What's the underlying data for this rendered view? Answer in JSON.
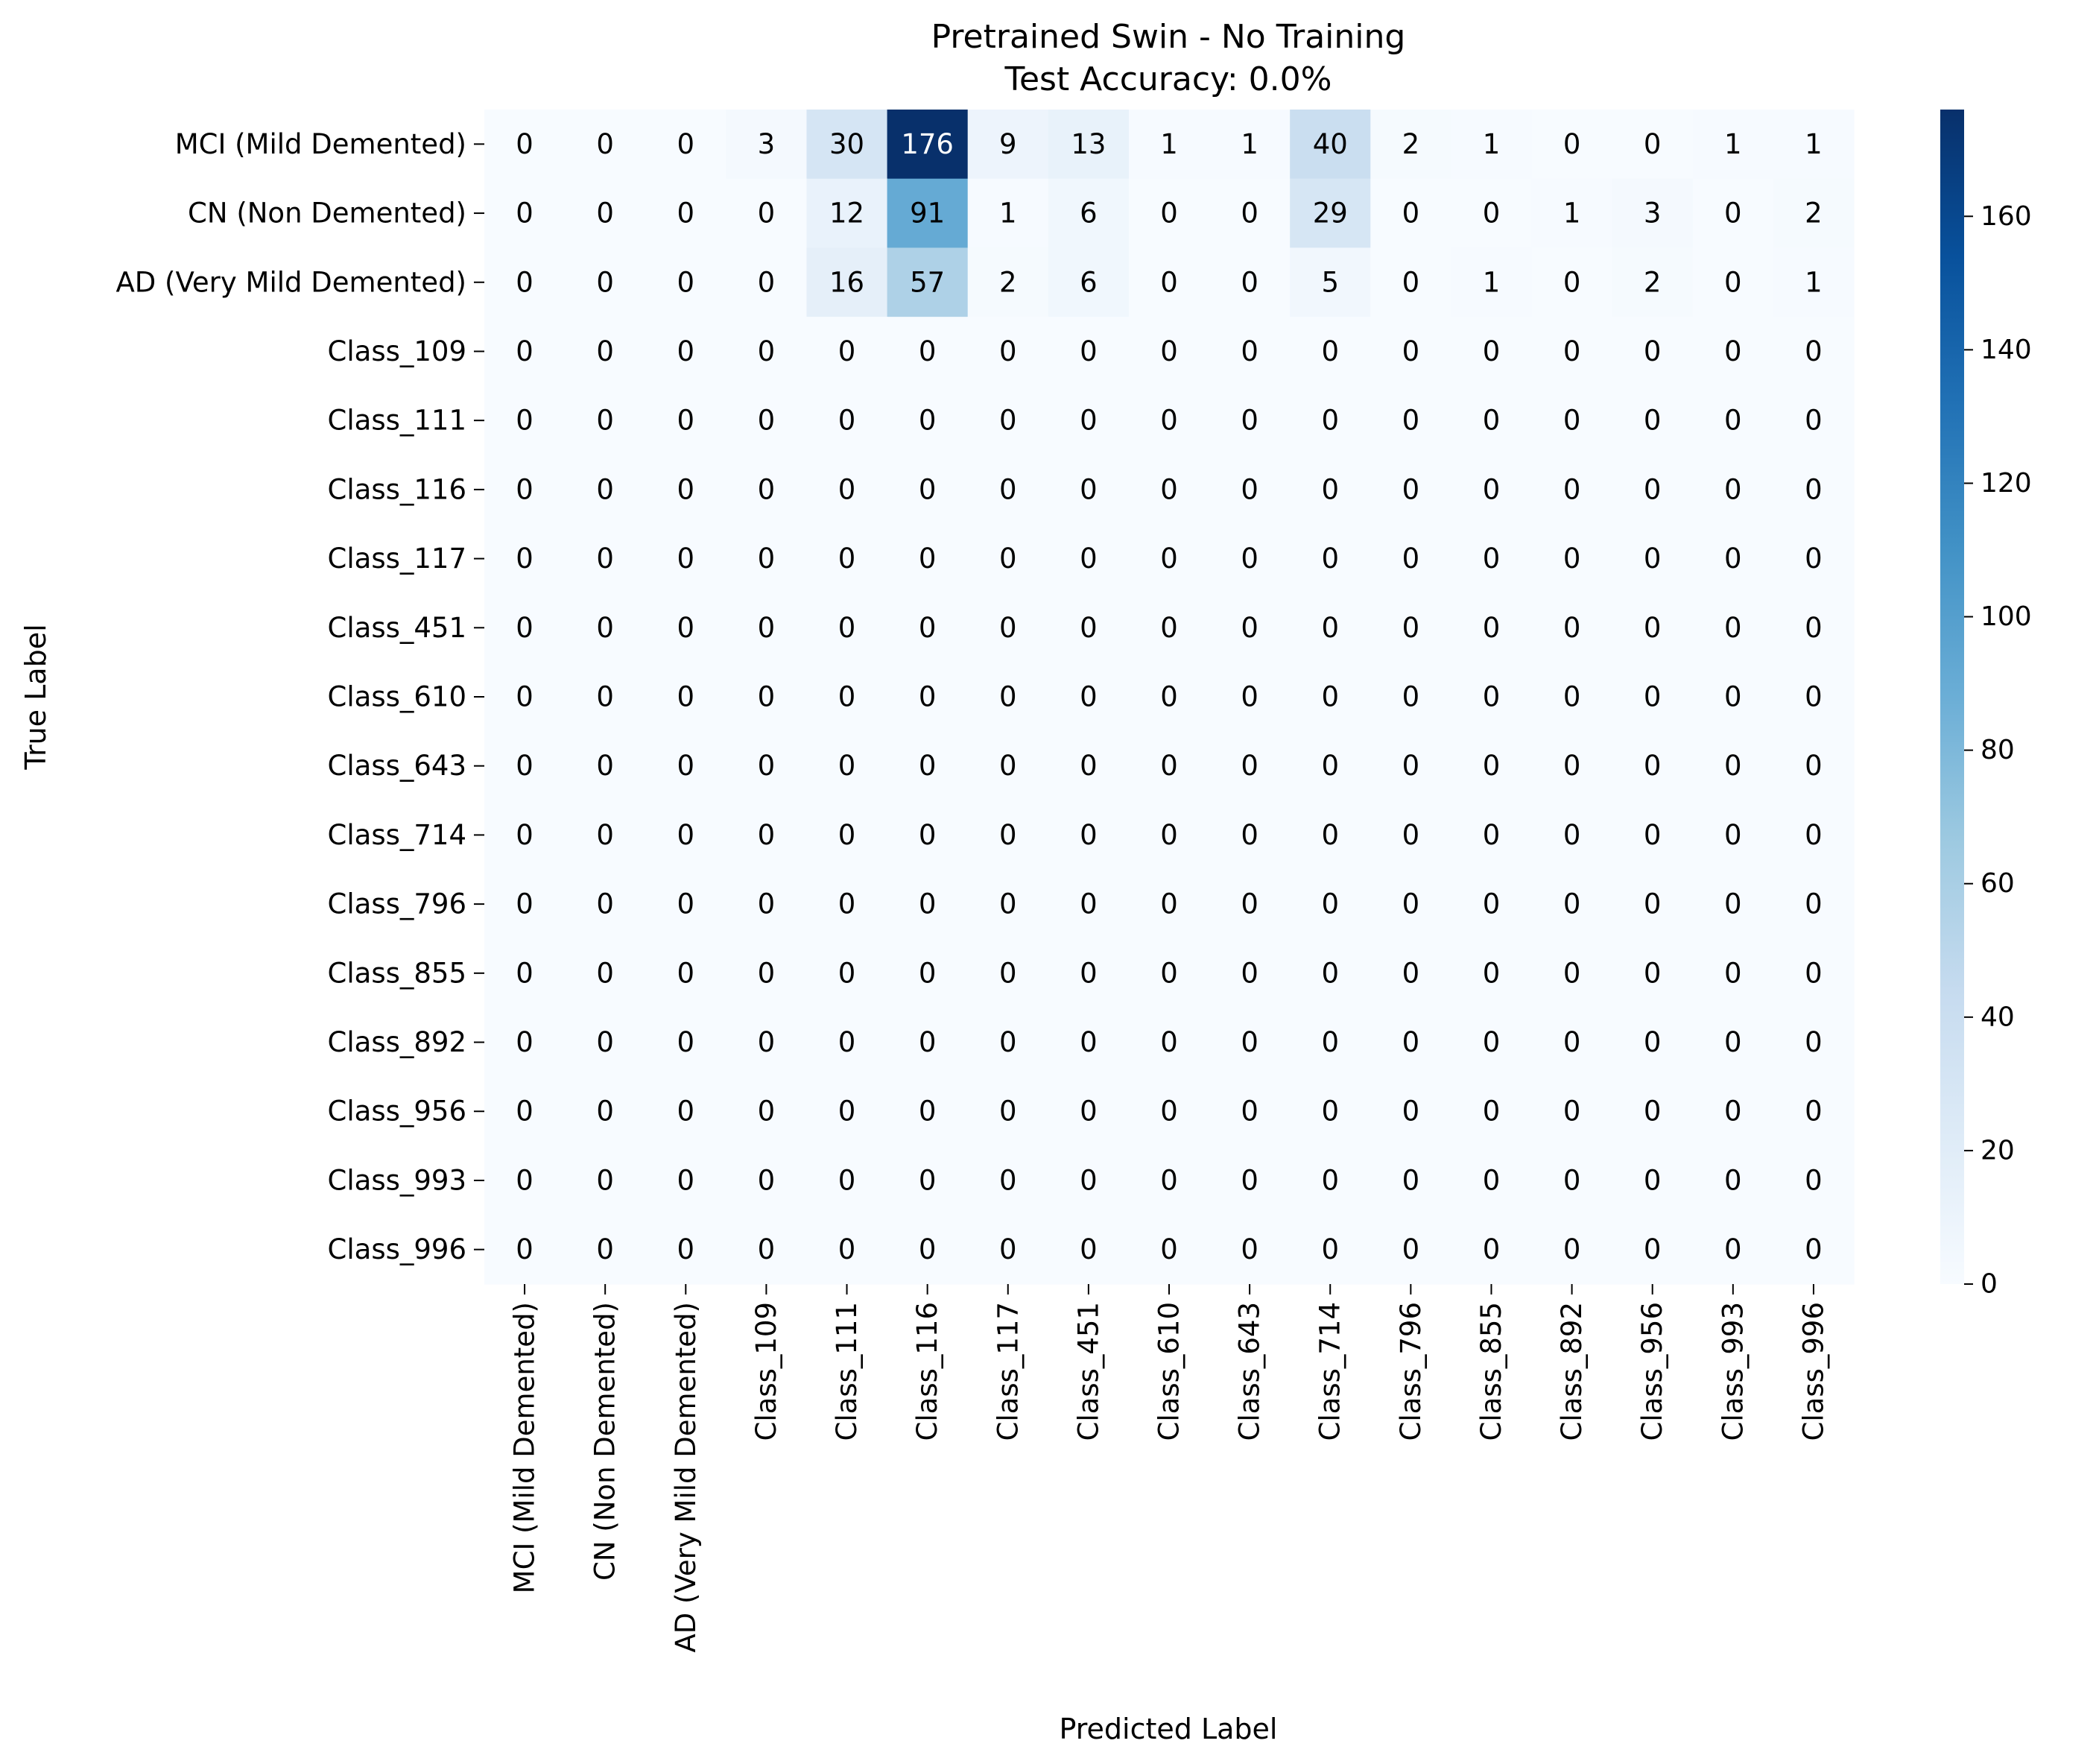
{
  "chart_data": {
    "type": "heatmap",
    "title": "Pretrained Swin - No Training",
    "subtitle": "Test Accuracy: 0.0%",
    "xlabel": "Predicted Label",
    "ylabel": "True Label",
    "row_labels": [
      "MCI (Mild Demented)",
      "CN (Non Demented)",
      "AD (Very Mild Demented)",
      "Class_109",
      "Class_111",
      "Class_116",
      "Class_117",
      "Class_451",
      "Class_610",
      "Class_643",
      "Class_714",
      "Class_796",
      "Class_855",
      "Class_892",
      "Class_956",
      "Class_993",
      "Class_996"
    ],
    "col_labels": [
      "MCI (Mild Demented)",
      "CN (Non Demented)",
      "AD (Very Mild Demented)",
      "Class_109",
      "Class_111",
      "Class_116",
      "Class_117",
      "Class_451",
      "Class_610",
      "Class_643",
      "Class_714",
      "Class_796",
      "Class_855",
      "Class_892",
      "Class_956",
      "Class_993",
      "Class_996"
    ],
    "values": [
      [
        0,
        0,
        0,
        3,
        30,
        176,
        9,
        13,
        1,
        1,
        40,
        2,
        1,
        0,
        0,
        1,
        1
      ],
      [
        0,
        0,
        0,
        0,
        12,
        91,
        1,
        6,
        0,
        0,
        29,
        0,
        0,
        1,
        3,
        0,
        2
      ],
      [
        0,
        0,
        0,
        0,
        16,
        57,
        2,
        6,
        0,
        0,
        5,
        0,
        1,
        0,
        2,
        0,
        1
      ],
      [
        0,
        0,
        0,
        0,
        0,
        0,
        0,
        0,
        0,
        0,
        0,
        0,
        0,
        0,
        0,
        0,
        0
      ],
      [
        0,
        0,
        0,
        0,
        0,
        0,
        0,
        0,
        0,
        0,
        0,
        0,
        0,
        0,
        0,
        0,
        0
      ],
      [
        0,
        0,
        0,
        0,
        0,
        0,
        0,
        0,
        0,
        0,
        0,
        0,
        0,
        0,
        0,
        0,
        0
      ],
      [
        0,
        0,
        0,
        0,
        0,
        0,
        0,
        0,
        0,
        0,
        0,
        0,
        0,
        0,
        0,
        0,
        0
      ],
      [
        0,
        0,
        0,
        0,
        0,
        0,
        0,
        0,
        0,
        0,
        0,
        0,
        0,
        0,
        0,
        0,
        0
      ],
      [
        0,
        0,
        0,
        0,
        0,
        0,
        0,
        0,
        0,
        0,
        0,
        0,
        0,
        0,
        0,
        0,
        0
      ],
      [
        0,
        0,
        0,
        0,
        0,
        0,
        0,
        0,
        0,
        0,
        0,
        0,
        0,
        0,
        0,
        0,
        0
      ],
      [
        0,
        0,
        0,
        0,
        0,
        0,
        0,
        0,
        0,
        0,
        0,
        0,
        0,
        0,
        0,
        0,
        0
      ],
      [
        0,
        0,
        0,
        0,
        0,
        0,
        0,
        0,
        0,
        0,
        0,
        0,
        0,
        0,
        0,
        0,
        0
      ],
      [
        0,
        0,
        0,
        0,
        0,
        0,
        0,
        0,
        0,
        0,
        0,
        0,
        0,
        0,
        0,
        0,
        0
      ],
      [
        0,
        0,
        0,
        0,
        0,
        0,
        0,
        0,
        0,
        0,
        0,
        0,
        0,
        0,
        0,
        0,
        0
      ],
      [
        0,
        0,
        0,
        0,
        0,
        0,
        0,
        0,
        0,
        0,
        0,
        0,
        0,
        0,
        0,
        0,
        0
      ],
      [
        0,
        0,
        0,
        0,
        0,
        0,
        0,
        0,
        0,
        0,
        0,
        0,
        0,
        0,
        0,
        0,
        0
      ],
      [
        0,
        0,
        0,
        0,
        0,
        0,
        0,
        0,
        0,
        0,
        0,
        0,
        0,
        0,
        0,
        0,
        0
      ]
    ],
    "colormap": "Blues",
    "colormap_stops": [
      "#f7fbff",
      "#deebf7",
      "#c6dbef",
      "#9ecae1",
      "#6baed6",
      "#4292c6",
      "#2171b5",
      "#08519c",
      "#08306b"
    ],
    "vmin": 0,
    "vmax": 176,
    "colorbar_ticks": [
      0,
      20,
      40,
      60,
      80,
      100,
      120,
      140,
      160
    ],
    "annotation_light_color": "#ffffff",
    "annotation_dark_color": "#000000"
  }
}
